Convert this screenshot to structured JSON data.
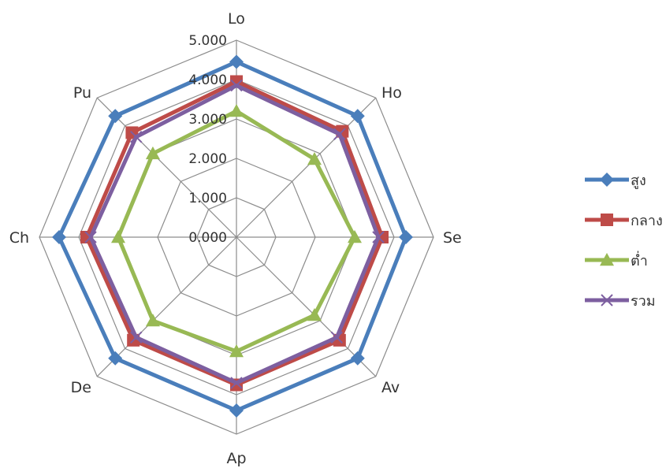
{
  "chart_data": {
    "type": "radar",
    "categories": [
      "Lo",
      "Ho",
      "Se",
      "Av",
      "Ap",
      "De",
      "Ch",
      "Pu"
    ],
    "rmin": 0,
    "rmax": 5,
    "ticks": [
      "0.000",
      "1.000",
      "2.000",
      "3.000",
      "4.000",
      "5.000"
    ],
    "tick_values": [
      0,
      1,
      2,
      3,
      4,
      5
    ],
    "grid": true,
    "legend_position": "right",
    "series": [
      {
        "name": "สูง",
        "color": "#4a7ebb",
        "marker": "diamond",
        "values": [
          4.45,
          4.35,
          4.3,
          4.35,
          4.4,
          4.35,
          4.5,
          4.35
        ]
      },
      {
        "name": "กลาง",
        "color": "#be4b48",
        "marker": "square",
        "values": [
          3.95,
          3.8,
          3.7,
          3.7,
          3.75,
          3.7,
          3.8,
          3.75
        ]
      },
      {
        "name": "ต่ำ",
        "color": "#98b954",
        "marker": "triangle",
        "values": [
          3.2,
          2.8,
          3.0,
          2.8,
          2.9,
          3.0,
          3.0,
          3.0
        ]
      },
      {
        "name": "รวม",
        "color": "#7d5fa0",
        "marker": "x",
        "values": [
          3.85,
          3.7,
          3.6,
          3.6,
          3.7,
          3.6,
          3.7,
          3.6
        ]
      }
    ]
  }
}
